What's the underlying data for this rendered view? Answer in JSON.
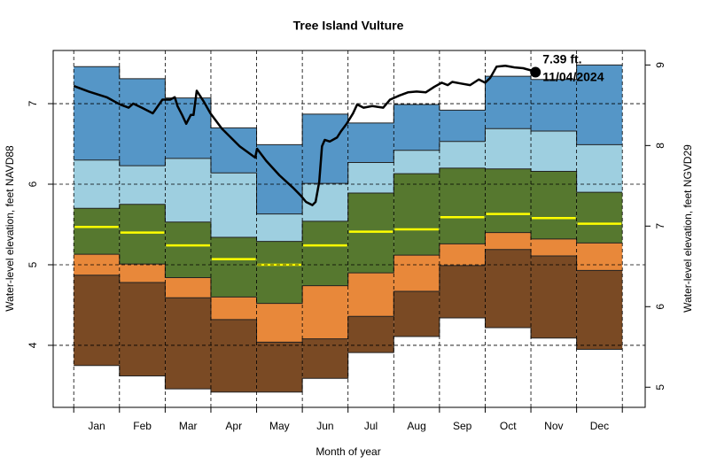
{
  "chart_data": {
    "type": "band",
    "title": "Tree Island Vulture",
    "xlabel": "Month of year",
    "ylabel": "Water-level elevation, feet NAVD88",
    "y2label": "Water-level elevation, feet NGVD29",
    "categories": [
      "Jan",
      "Feb",
      "Mar",
      "Apr",
      "May",
      "Jun",
      "Jul",
      "Aug",
      "Sep",
      "Oct",
      "Nov",
      "Dec"
    ],
    "xlim": [
      -0.45,
      12.5
    ],
    "ylim": [
      3.23,
      7.66
    ],
    "yticks": [
      4,
      5,
      6,
      7
    ],
    "y2lim": [
      4.75,
      9.18
    ],
    "y2ticks": [
      5,
      6,
      7,
      8,
      9
    ],
    "grid": true,
    "band_colors": [
      "#7a4a24",
      "#e8883a",
      "#56782f",
      "#56782f",
      "#9ecfe0",
      "#5596c7"
    ],
    "bounds": [
      {
        "values": [
          3.75,
          3.62,
          3.46,
          3.42,
          3.42,
          3.59,
          3.91,
          4.11,
          4.34,
          4.22,
          4.09,
          3.95
        ]
      },
      {
        "values": [
          4.87,
          4.78,
          4.59,
          4.32,
          4.04,
          4.08,
          4.36,
          4.67,
          4.99,
          5.19,
          5.11,
          4.93
        ]
      },
      {
        "values": [
          5.13,
          5.01,
          4.84,
          4.6,
          4.52,
          4.74,
          4.9,
          5.12,
          5.26,
          5.4,
          5.32,
          5.27
        ]
      },
      {
        "values": [
          5.47,
          5.4,
          5.24,
          5.07,
          5.0,
          5.24,
          5.41,
          5.44,
          5.59,
          5.63,
          5.58,
          5.51
        ]
      },
      {
        "values": [
          5.7,
          5.75,
          5.53,
          5.34,
          5.29,
          5.54,
          5.89,
          6.13,
          6.2,
          6.19,
          6.16,
          5.9
        ]
      },
      {
        "values": [
          6.3,
          6.23,
          6.32,
          6.14,
          5.63,
          6.01,
          6.27,
          6.42,
          6.53,
          6.69,
          6.66,
          6.49
        ]
      },
      {
        "values": [
          7.46,
          7.31,
          7.07,
          6.7,
          6.49,
          6.87,
          6.76,
          6.99,
          6.92,
          7.34,
          7.3,
          7.48
        ]
      }
    ],
    "median": {
      "color": "#ffff00",
      "values": [
        5.47,
        5.4,
        5.24,
        5.07,
        5.0,
        5.24,
        5.41,
        5.44,
        5.59,
        5.63,
        5.58,
        5.51
      ]
    },
    "line": {
      "color": "#000000",
      "x": [
        0,
        0.33,
        0.72,
        1.01,
        1.2,
        1.3,
        1.49,
        1.73,
        1.94,
        2.11,
        2.21,
        2.27,
        2.37,
        2.46,
        2.56,
        2.62,
        2.69,
        2.85,
        2.99,
        3.24,
        3.63,
        3.97,
        4.01,
        4.21,
        4.5,
        4.79,
        4.98,
        5.08,
        5.22,
        5.29,
        5.37,
        5.43,
        5.49,
        5.6,
        5.76,
        5.85,
        5.97,
        6.11,
        6.2,
        6.34,
        6.53,
        6.77,
        6.92,
        7.12,
        7.31,
        7.5,
        7.7,
        7.89,
        8.05,
        8.18,
        8.28,
        8.47,
        8.67,
        8.86,
        9.0,
        9.11,
        9.25,
        9.44,
        9.64,
        9.83,
        10.02,
        10.1
      ],
      "values": [
        7.22,
        7.15,
        7.08,
        6.99,
        6.95,
        7.0,
        6.95,
        6.88,
        7.05,
        7.05,
        7.08,
        6.97,
        6.86,
        6.75,
        6.86,
        6.86,
        7.16,
        7.02,
        6.88,
        6.69,
        6.47,
        6.33,
        6.44,
        6.29,
        6.11,
        5.96,
        5.85,
        5.78,
        5.74,
        5.78,
        6.03,
        6.47,
        6.55,
        6.53,
        6.58,
        6.66,
        6.75,
        6.88,
        6.99,
        6.95,
        6.97,
        6.95,
        7.05,
        7.1,
        7.14,
        7.15,
        7.14,
        7.21,
        7.26,
        7.23,
        7.27,
        7.25,
        7.23,
        7.3,
        7.26,
        7.32,
        7.46,
        7.47,
        7.45,
        7.44,
        7.41,
        7.39
      ]
    },
    "annotation": {
      "value_label": "7.39 ft.",
      "date": "11/04/2024"
    }
  }
}
